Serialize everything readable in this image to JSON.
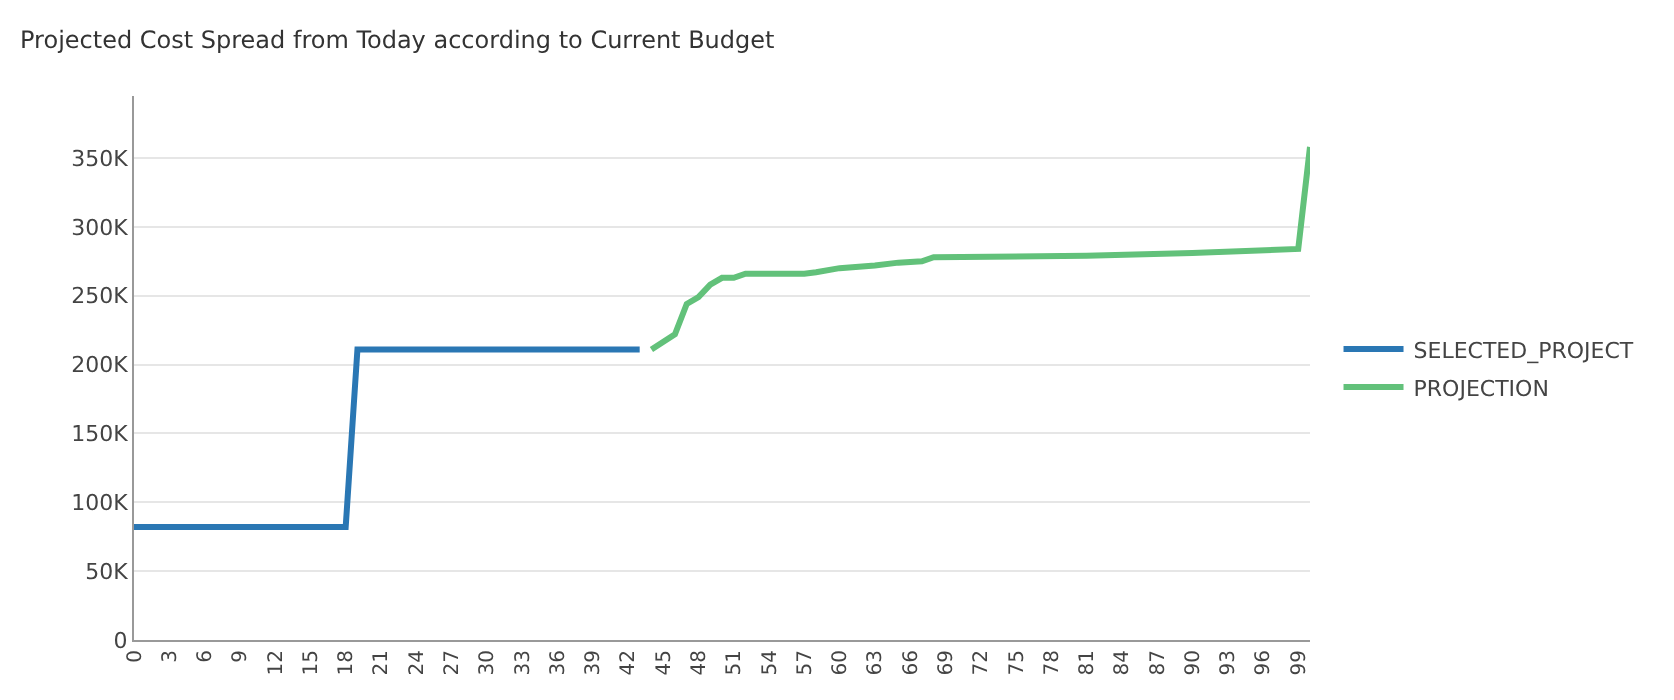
{
  "chart_data": {
    "type": "line",
    "title": "Projected Cost Spread from Today according to Current Budget",
    "series": [
      {
        "name": "SELECTED_PROJECT",
        "color": "#2a77b4",
        "x": [
          0,
          18,
          19,
          43
        ],
        "values": [
          82000,
          82000,
          211000,
          211000
        ]
      },
      {
        "name": "PROJECTION",
        "color": "#62c17a",
        "x": [
          44,
          46,
          47,
          48,
          49,
          50,
          51,
          52,
          57,
          58,
          60,
          63,
          65,
          67,
          68,
          81,
          90,
          99,
          100
        ],
        "values": [
          211000,
          222000,
          244000,
          249000,
          258000,
          263000,
          263000,
          266000,
          266000,
          267000,
          270000,
          272000,
          274000,
          275000,
          278000,
          279000,
          281000,
          284000,
          358000
        ]
      }
    ],
    "xlim": [
      0,
      100
    ],
    "xticks": [
      0,
      3,
      6,
      9,
      12,
      15,
      18,
      21,
      24,
      27,
      30,
      33,
      36,
      39,
      42,
      45,
      48,
      51,
      54,
      57,
      60,
      63,
      66,
      69,
      72,
      75,
      78,
      81,
      84,
      87,
      90,
      93,
      96,
      99
    ],
    "ylim": [
      0,
      395000
    ],
    "yticks": [
      {
        "value": 0,
        "label": "0"
      },
      {
        "value": 50000,
        "label": "50K"
      },
      {
        "value": 100000,
        "label": "100K"
      },
      {
        "value": 150000,
        "label": "150K"
      },
      {
        "value": 200000,
        "label": "200K"
      },
      {
        "value": 250000,
        "label": "250K"
      },
      {
        "value": 300000,
        "label": "300K"
      },
      {
        "value": 350000,
        "label": "350K"
      }
    ],
    "grid": "y",
    "legend": "right",
    "marker": "none",
    "line_style": "solid"
  }
}
